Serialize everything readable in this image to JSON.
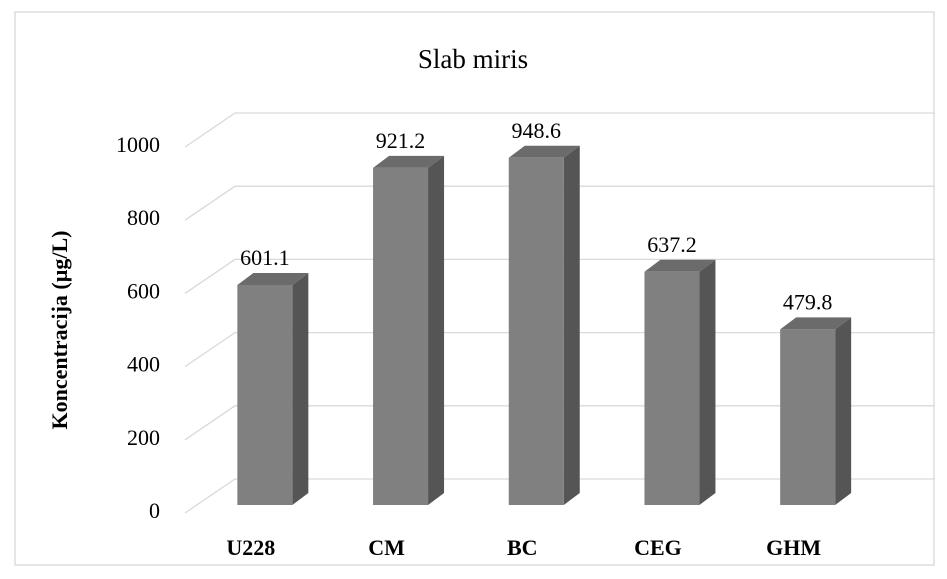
{
  "chart_data": {
    "type": "bar",
    "title": "Slab miris",
    "y_label": "Koncentracija (µg/L)",
    "categories": [
      "U228",
      "CM",
      "BC",
      "CEG",
      "GHM"
    ],
    "values": [
      601.1,
      921.2,
      948.6,
      637.2,
      479.8
    ],
    "color": "#808080",
    "ylim": [
      0,
      1000
    ],
    "yticks": [
      0,
      200,
      400,
      600,
      800,
      1000
    ],
    "grid": true
  }
}
